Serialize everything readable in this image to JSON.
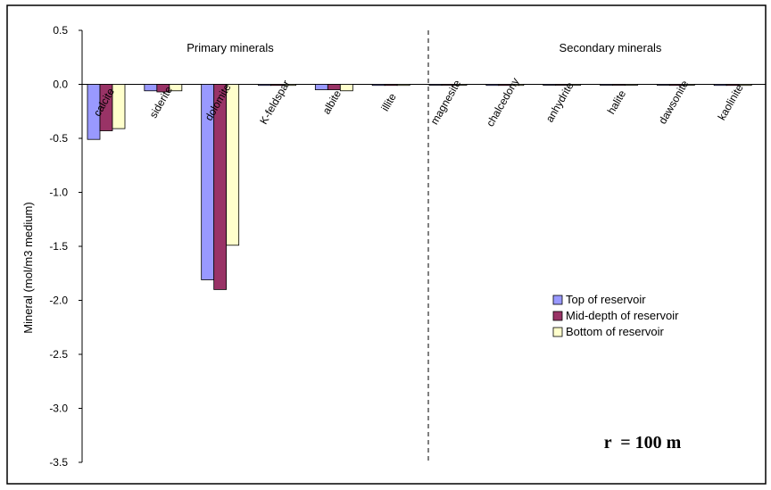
{
  "chart_data": {
    "type": "bar",
    "ylabel": "Mineral (mol/m3 medium)",
    "ylim": [
      -3.5,
      0.5
    ],
    "yticks": [
      "0.5",
      "0.0",
      "-0.5",
      "-1.0",
      "-1.5",
      "-2.0",
      "-2.5",
      "-3.0",
      "-3.5"
    ],
    "categories": [
      "calcite",
      "siderite",
      "dolomite",
      "K-feldspar",
      "albite",
      "illite",
      "magnesite",
      "chalcedony",
      "anhydrite",
      "halite",
      "dawsonite",
      "kaolinite"
    ],
    "series": [
      {
        "name": "Top of reservoir",
        "color": "#9999ff",
        "values": [
          -0.51,
          -0.06,
          -1.81,
          -0.01,
          -0.05,
          -0.01,
          0.0,
          -0.01,
          0.0,
          0.0,
          0.0,
          -0.01
        ]
      },
      {
        "name": "Mid-depth of reservoir",
        "color": "#993366",
        "values": [
          -0.43,
          -0.07,
          -1.9,
          -0.01,
          -0.05,
          -0.01,
          0.0,
          -0.01,
          0.0,
          0.0,
          -0.01,
          -0.01
        ]
      },
      {
        "name": "Bottom of reservoir",
        "color": "#ffffcc",
        "values": [
          -0.41,
          -0.06,
          -1.49,
          -0.01,
          -0.06,
          -0.01,
          0.0,
          -0.01,
          0.0,
          0.0,
          0.0,
          -0.01
        ]
      }
    ],
    "group_labels": [
      "Primary minerals",
      "Secondary minerals"
    ],
    "annotation": "r  = 100 m",
    "divider_after_category": "illite",
    "legend_position": "center-right",
    "grid": false
  }
}
